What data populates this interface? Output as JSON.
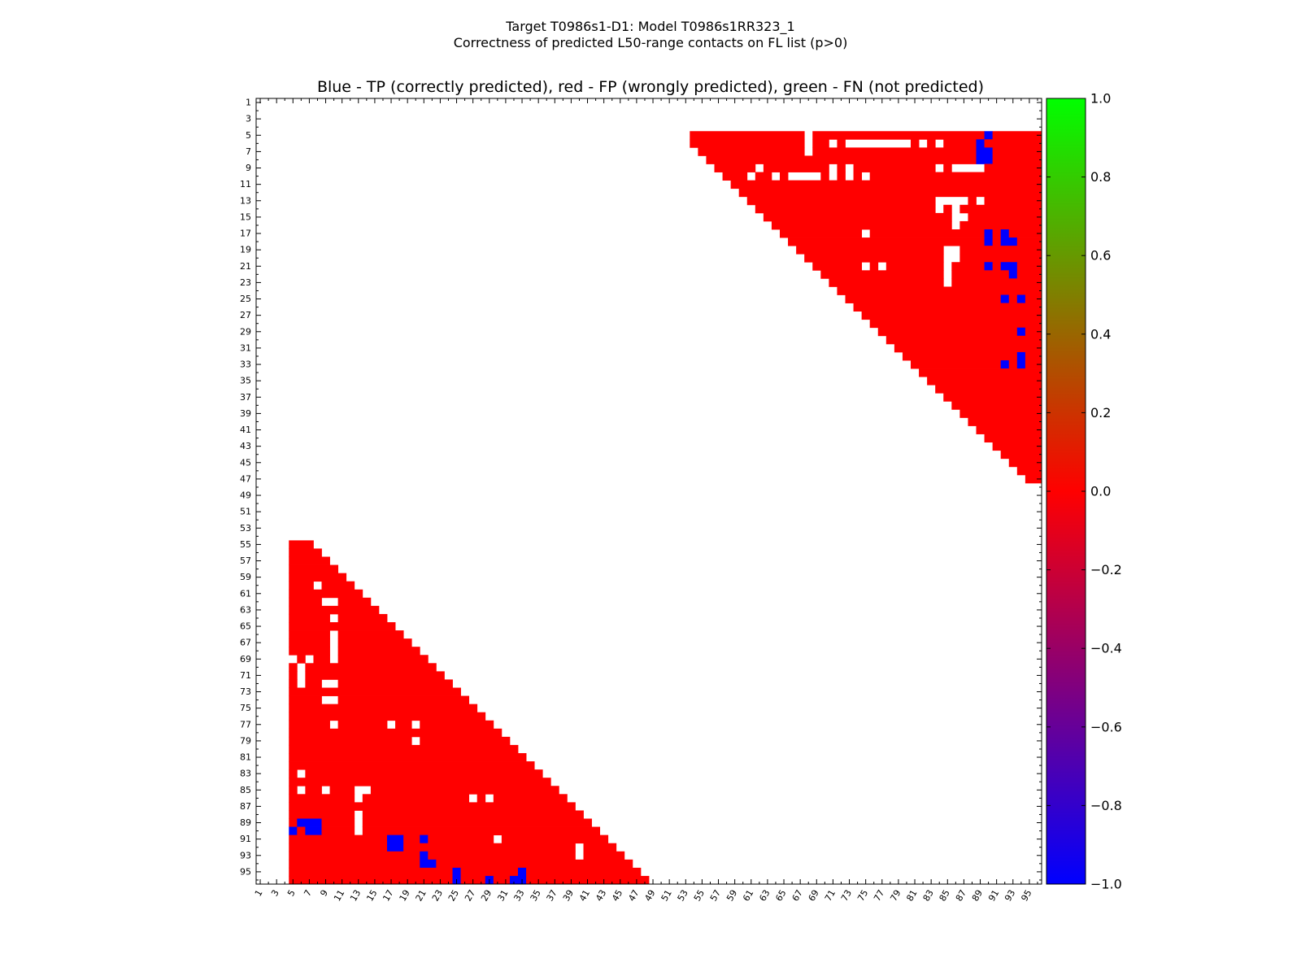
{
  "chart_data": {
    "type": "heatmap",
    "suptitle_lines": [
      "Target T0986s1-D1: Model T0986s1RR323_1",
      "Correctness of predicted L50-range contacts on FL list (p>0)"
    ],
    "title": "Blue - TP (correctly predicted), red - FP (wrongly predicted), green - FN (not predicted)",
    "n": 96,
    "x_range": [
      1,
      96
    ],
    "y_range": [
      1,
      96
    ],
    "y_inverted": true,
    "x_tick_labels": [
      "1",
      "3",
      "5",
      "7",
      "9",
      "11",
      "13",
      "15",
      "17",
      "19",
      "21",
      "23",
      "25",
      "27",
      "29",
      "31",
      "33",
      "35",
      "37",
      "39",
      "41",
      "43",
      "45",
      "47",
      "49",
      "51",
      "53",
      "55",
      "57",
      "59",
      "61",
      "63",
      "65",
      "67",
      "69",
      "71",
      "73",
      "75",
      "77",
      "79",
      "81",
      "83",
      "85",
      "87",
      "89",
      "91",
      "93",
      "95"
    ],
    "y_tick_labels": [
      "1",
      "3",
      "5",
      "7",
      "9",
      "11",
      "13",
      "15",
      "17",
      "19",
      "21",
      "23",
      "25",
      "27",
      "29",
      "31",
      "33",
      "35",
      "37",
      "39",
      "41",
      "43",
      "45",
      "47",
      "49",
      "51",
      "53",
      "55",
      "57",
      "59",
      "61",
      "63",
      "65",
      "67",
      "69",
      "71",
      "73",
      "75",
      "77",
      "79",
      "81",
      "83",
      "85",
      "87",
      "89",
      "91",
      "93",
      "95"
    ],
    "colorbar": {
      "range": [
        -1.0,
        1.0
      ],
      "ticks": [
        "1.0",
        "0.8",
        "0.6",
        "0.4",
        "0.2",
        "0.0",
        "−0.2",
        "−0.4",
        "−0.6",
        "−0.8",
        "−1.0"
      ],
      "colors": {
        "neg": "#0000ff",
        "mid": "#ff0000",
        "pos": "#00ff00"
      }
    },
    "values_legend": {
      "fp": 0.0,
      "tp": -1.0,
      "fn": 1.0
    },
    "upper_fp_region": {
      "row_range": [
        5,
        47
      ],
      "col_start_row5": 54,
      "col_end": 96,
      "diagonal_offset": 48
    },
    "lower_fp_region": {
      "row_range": [
        55,
        96
      ],
      "col_start": 5,
      "diagonal_offset": -48
    },
    "tp_cells": [
      [
        5,
        90
      ],
      [
        6,
        89
      ],
      [
        7,
        89
      ],
      [
        7,
        90
      ],
      [
        8,
        89
      ],
      [
        8,
        90
      ],
      [
        17,
        90
      ],
      [
        17,
        92
      ],
      [
        18,
        90
      ],
      [
        18,
        92
      ],
      [
        18,
        93
      ],
      [
        21,
        90
      ],
      [
        21,
        92
      ],
      [
        21,
        93
      ],
      [
        22,
        93
      ],
      [
        25,
        92
      ],
      [
        25,
        94
      ],
      [
        29,
        94
      ],
      [
        33,
        92
      ],
      [
        33,
        94
      ],
      [
        32,
        94
      ],
      [
        90,
        5
      ],
      [
        89,
        6
      ],
      [
        89,
        7
      ],
      [
        90,
        7
      ],
      [
        90,
        8
      ],
      [
        89,
        8
      ],
      [
        91,
        17
      ],
      [
        91,
        18
      ],
      [
        92,
        17
      ],
      [
        92,
        18
      ],
      [
        91,
        21
      ],
      [
        93,
        21
      ],
      [
        94,
        21
      ],
      [
        94,
        22
      ],
      [
        95,
        25
      ],
      [
        96,
        25
      ],
      [
        96,
        29
      ],
      [
        95,
        33
      ],
      [
        96,
        32
      ],
      [
        96,
        33
      ]
    ],
    "white_cells": [
      [
        5,
        68
      ],
      [
        6,
        68
      ],
      [
        7,
        68
      ],
      [
        6,
        71
      ],
      [
        6,
        73
      ],
      [
        6,
        74
      ],
      [
        6,
        75
      ],
      [
        6,
        76
      ],
      [
        6,
        77
      ],
      [
        6,
        78
      ],
      [
        6,
        79
      ],
      [
        6,
        80
      ],
      [
        6,
        82
      ],
      [
        6,
        84
      ],
      [
        9,
        62
      ],
      [
        9,
        71
      ],
      [
        9,
        73
      ],
      [
        9,
        84
      ],
      [
        9,
        86
      ],
      [
        9,
        87
      ],
      [
        9,
        88
      ],
      [
        9,
        89
      ],
      [
        10,
        61
      ],
      [
        10,
        64
      ],
      [
        10,
        66
      ],
      [
        10,
        67
      ],
      [
        10,
        68
      ],
      [
        10,
        69
      ],
      [
        10,
        71
      ],
      [
        10,
        73
      ],
      [
        10,
        75
      ],
      [
        13,
        84
      ],
      [
        13,
        85
      ],
      [
        13,
        86
      ],
      [
        13,
        87
      ],
      [
        13,
        89
      ],
      [
        14,
        84
      ],
      [
        14,
        86
      ],
      [
        15,
        86
      ],
      [
        15,
        87
      ],
      [
        16,
        86
      ],
      [
        17,
        75
      ],
      [
        19,
        85
      ],
      [
        19,
        86
      ],
      [
        20,
        85
      ],
      [
        20,
        86
      ],
      [
        21,
        75
      ],
      [
        21,
        77
      ],
      [
        21,
        85
      ],
      [
        22,
        85
      ],
      [
        23,
        85
      ],
      [
        60,
        8
      ],
      [
        62,
        9
      ],
      [
        62,
        10
      ],
      [
        64,
        10
      ],
      [
        66,
        10
      ],
      [
        67,
        10
      ],
      [
        68,
        10
      ],
      [
        69,
        5
      ],
      [
        69,
        7
      ],
      [
        69,
        10
      ],
      [
        70,
        6
      ],
      [
        71,
        6
      ],
      [
        72,
        6
      ],
      [
        72,
        9
      ],
      [
        72,
        10
      ],
      [
        74,
        9
      ],
      [
        74,
        10
      ],
      [
        77,
        10
      ],
      [
        77,
        17
      ],
      [
        77,
        20
      ],
      [
        79,
        20
      ],
      [
        83,
        6
      ],
      [
        85,
        6
      ],
      [
        85,
        9
      ],
      [
        85,
        13
      ],
      [
        85,
        14
      ],
      [
        86,
        13
      ],
      [
        86,
        27
      ],
      [
        86,
        29
      ],
      [
        88,
        13
      ],
      [
        89,
        13
      ],
      [
        90,
        13
      ],
      [
        91,
        30
      ],
      [
        92,
        40
      ],
      [
        93,
        40
      ]
    ]
  }
}
